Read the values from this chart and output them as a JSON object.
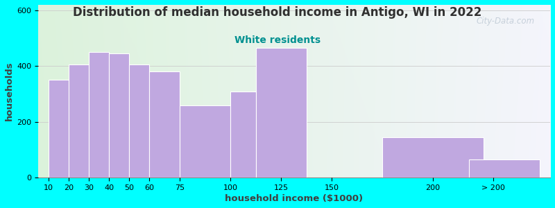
{
  "title": "Distribution of median household income in Antigo, WI in 2022",
  "subtitle": "White residents",
  "xlabel": "household income ($1000)",
  "ylabel": "households",
  "bar_color": "#c0a8e0",
  "bar_edge_color": "#ffffff",
  "background_color": "#00ffff",
  "title_fontsize": 12,
  "subtitle_fontsize": 10,
  "subtitle_color": "#009090",
  "title_color": "#303030",
  "values": [
    350,
    405,
    450,
    445,
    405,
    380,
    260,
    310,
    465,
    145,
    65
  ],
  "left_edges": [
    10,
    20,
    30,
    40,
    50,
    60,
    75,
    100,
    112.5,
    175,
    218
  ],
  "widths": [
    10,
    10,
    10,
    10,
    10,
    15,
    25,
    12.5,
    25,
    50,
    35
  ],
  "xlim": [
    5,
    258
  ],
  "ylim": [
    0,
    620
  ],
  "yticks": [
    0,
    200,
    400,
    600
  ],
  "xtick_positions": [
    10,
    20,
    30,
    40,
    50,
    60,
    75,
    100,
    125,
    150,
    200,
    230
  ],
  "xtick_labels": [
    "10",
    "20",
    "30",
    "40",
    "50",
    "60",
    "75",
    "100",
    "125",
    "150",
    "200",
    "> 200"
  ],
  "gradient_split": 148,
  "watermark": "City-Data.com"
}
